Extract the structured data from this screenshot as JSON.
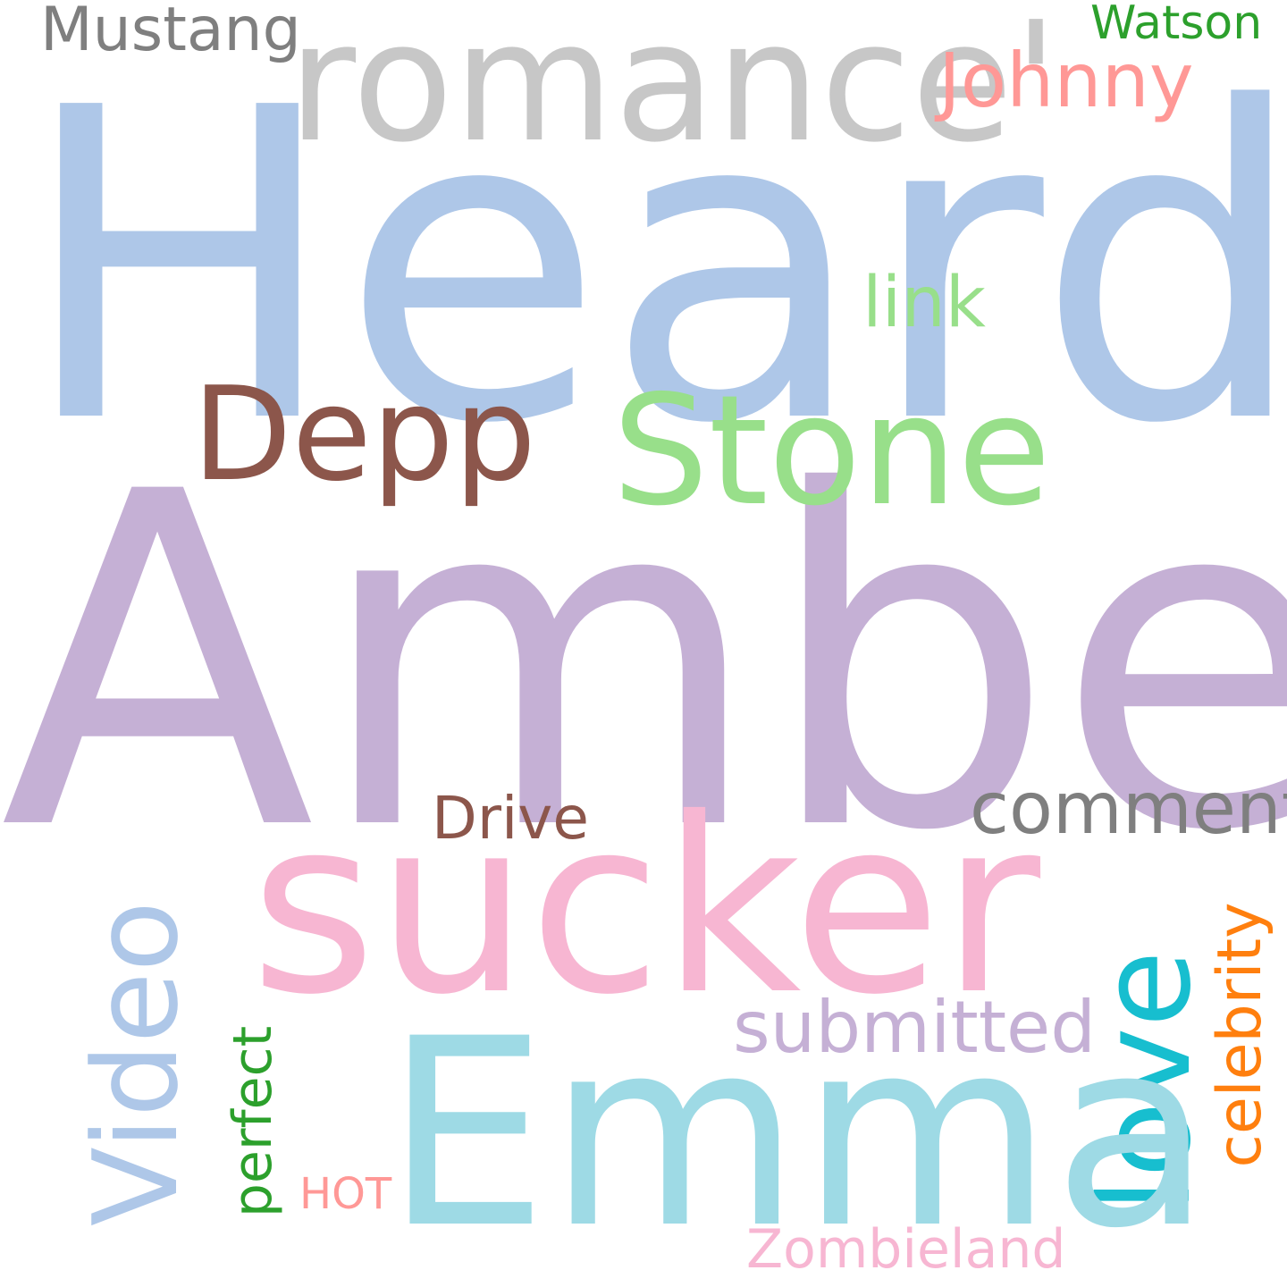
{
  "words": {
    "heard": {
      "text": "Heard",
      "color": "#aec7e8"
    },
    "amber": {
      "text": "Amber",
      "color": "#c5b0d5"
    },
    "romance": {
      "text": "romance'",
      "color": "#c7c7c7"
    },
    "mustang": {
      "text": "Mustang",
      "color": "#7f7f7f"
    },
    "watson": {
      "text": "Watson",
      "color": "#2ca02c"
    },
    "johnny": {
      "text": "Johnny",
      "color": "#ff9896"
    },
    "link": {
      "text": "link",
      "color": "#98df8a"
    },
    "depp": {
      "text": "Depp",
      "color": "#8c564b"
    },
    "stone": {
      "text": "Stone",
      "color": "#98df8a"
    },
    "comment": {
      "text": "comment",
      "color": "#7f7f7f"
    },
    "drive": {
      "text": "Drive",
      "color": "#8c564b"
    },
    "sucker": {
      "text": "sucker",
      "color": "#f7b6d2"
    },
    "video": {
      "text": "Video",
      "color": "#aec7e8"
    },
    "perfect": {
      "text": "perfect",
      "color": "#2ca02c"
    },
    "love": {
      "text": "love",
      "color": "#17becf"
    },
    "celebrity": {
      "text": "celebrity",
      "color": "#ff7f0e"
    },
    "emma": {
      "text": "Emma",
      "color": "#9edae5"
    },
    "submitted": {
      "text": "submitted",
      "color": "#c5b0d5"
    },
    "hot": {
      "text": "HOT",
      "color": "#ff9896"
    },
    "zombieland": {
      "text": "Zombieland",
      "color": "#f7b6d2"
    }
  }
}
